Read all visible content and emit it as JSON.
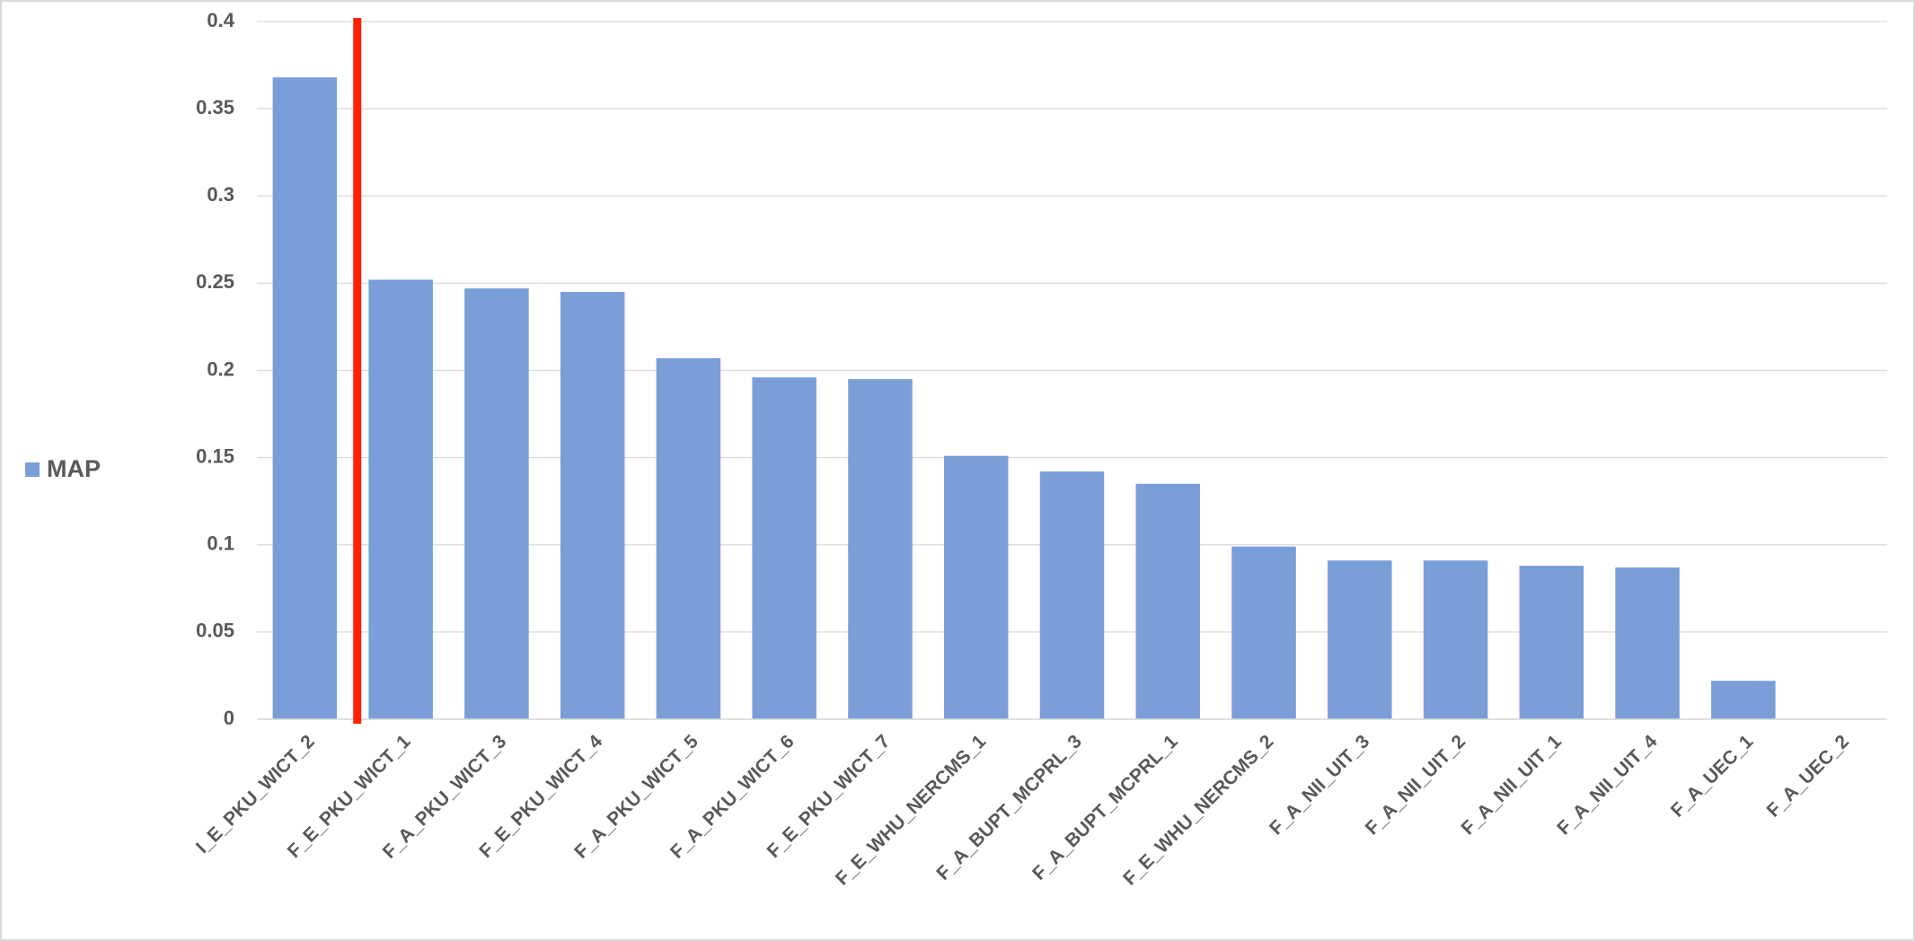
{
  "chart_data": {
    "type": "bar",
    "categories": [
      "I_E_PKU_WICT_2",
      "F_E_PKU_WICT_1",
      "F_A_PKU_WICT_3",
      "F_E_PKU_WICT_4",
      "F_A_PKU_WICT_5",
      "F_A_PKU_WICT_6",
      "F_E_PKU_WICT_7",
      "F_E_WHU_NERCMS_1",
      "F_A_BUPT_MCPRL_3",
      "F_A_BUPT_MCPRL_1",
      "F_E_WHU_NERCMS_2",
      "F_A_NII_UIT_3",
      "F_A_NII_UIT_2",
      "F_A_NII_UIT_1",
      "F_A_NII_UIT_4",
      "F_A_UEC_1",
      "F_A_UEC_2"
    ],
    "series": [
      {
        "name": "MAP",
        "color": "#7a9fd8",
        "values": [
          0.368,
          0.252,
          0.247,
          0.245,
          0.207,
          0.196,
          0.195,
          0.151,
          0.142,
          0.135,
          0.099,
          0.091,
          0.091,
          0.088,
          0.087,
          0.022,
          0
        ]
      }
    ],
    "ylim": [
      0,
      0.4
    ],
    "yticks": [
      0,
      0.05,
      0.1,
      0.15,
      0.2,
      0.25,
      0.3,
      0.35,
      0.4
    ],
    "grid": true,
    "legend": "left"
  }
}
